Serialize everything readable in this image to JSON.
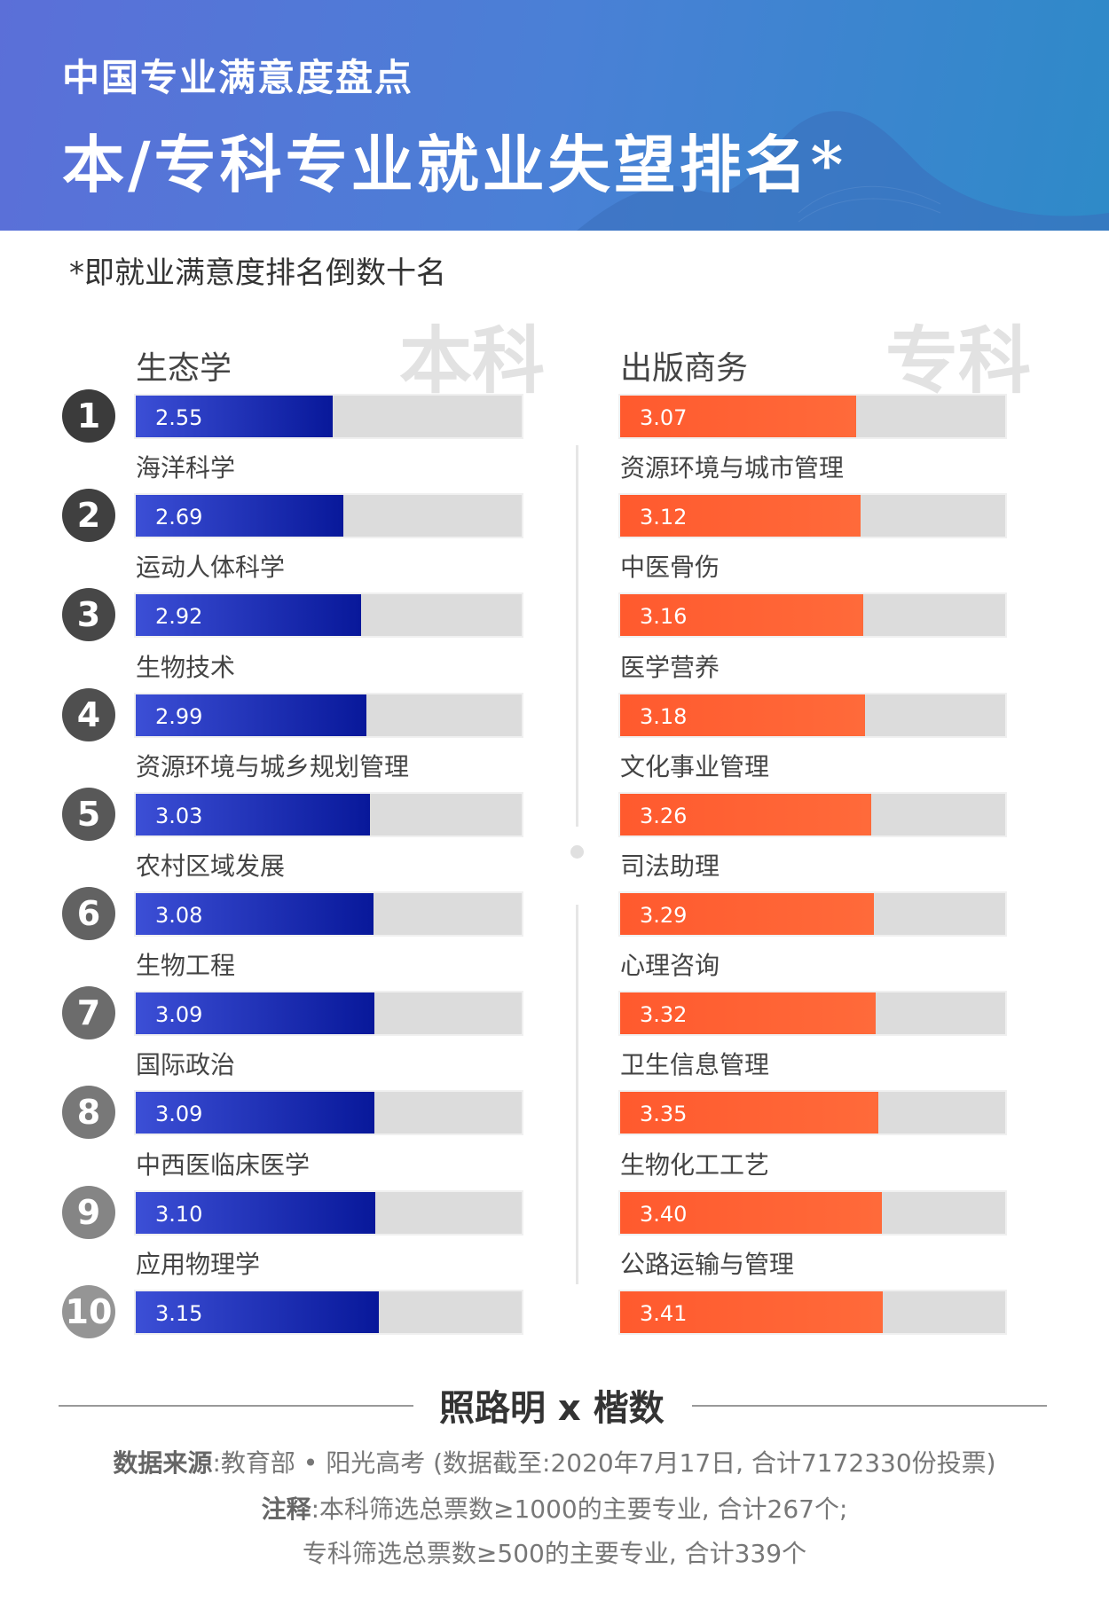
{
  "header": {
    "kicker": "中国专业满意度盘点",
    "title": "本/专科专业就业失望排名*"
  },
  "note": "*即就业满意度排名倒数十名",
  "watermarks": {
    "left": "本科",
    "right": "专科"
  },
  "colors": {
    "undergrad": "#1a28b0",
    "junior": "#ff5a2e",
    "track": "#dcdcdc"
  },
  "chart_data": [
    {
      "type": "bar",
      "orientation": "horizontal",
      "title": "本科",
      "xlim": [
        0,
        5
      ],
      "ranks": [
        "1",
        "2",
        "3",
        "4",
        "5",
        "6",
        "7",
        "8",
        "9",
        "10"
      ],
      "categories": [
        "生态学",
        "海洋科学",
        "运动人体科学",
        "生物技术",
        "资源环境与城乡规划管理",
        "农村区域发展",
        "生物工程",
        "国际政治",
        "中西医临床医学",
        "应用物理学"
      ],
      "values": [
        "2.55",
        "2.69",
        "2.92",
        "2.99",
        "3.03",
        "3.08",
        "3.09",
        "3.09",
        "3.10",
        "3.15"
      ]
    },
    {
      "type": "bar",
      "orientation": "horizontal",
      "title": "专科",
      "xlim": [
        0,
        5
      ],
      "categories": [
        "出版商务",
        "资源环境与城市管理",
        "中医骨伤",
        "医学营养",
        "文化事业管理",
        "司法助理",
        "心理咨询",
        "卫生信息管理",
        "生物化工工艺",
        "公路运输与管理"
      ],
      "values": [
        "3.07",
        "3.12",
        "3.16",
        "3.18",
        "3.26",
        "3.29",
        "3.32",
        "3.35",
        "3.40",
        "3.41"
      ]
    }
  ],
  "footer": {
    "brand": "照路明 x 楷数",
    "source_label": "数据来源",
    "source_text": ":教育部 • 阳光高考 (数据截至:2020年7月17日, 合计7172330份投票)",
    "note_label": "注释",
    "note_line1": ":本科筛选总票数≥1000的主要专业, 合计267个;",
    "note_line2": "专科筛选总票数≥500的主要专业, 合计339个"
  }
}
